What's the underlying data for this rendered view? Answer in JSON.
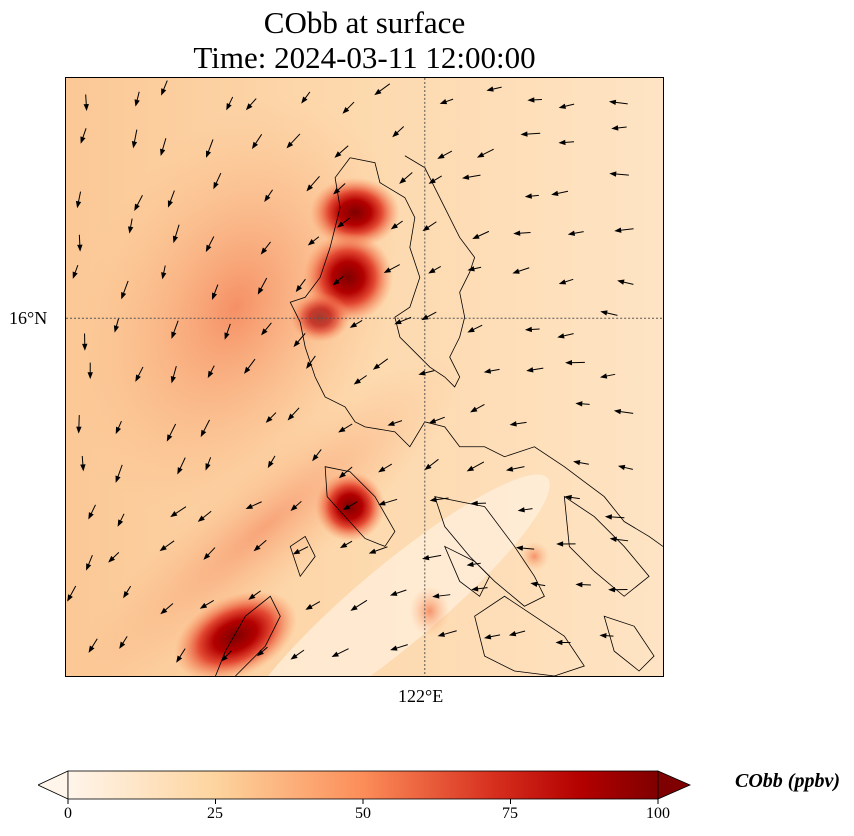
{
  "title": {
    "line1": "CObb at surface",
    "line2": "Time: 2024-03-11 12:00:00"
  },
  "axes": {
    "lat_label": "16°N",
    "lon_label": "122°E"
  },
  "colorbar": {
    "label": "CObb (ppbv)",
    "ticks": [
      "0",
      "25",
      "50",
      "75",
      "100"
    ],
    "range": [
      0,
      100
    ],
    "extend": "both",
    "colors": [
      "#fff5eb",
      "#fdd49e",
      "#fc8d59",
      "#d7301f",
      "#b30000",
      "#7f0000"
    ]
  }
}
